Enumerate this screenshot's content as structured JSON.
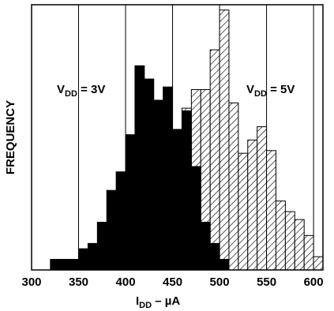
{
  "chart_data": {
    "type": "bar",
    "xlabel": {
      "main": "I",
      "sub": "DD",
      "rest": " – µA"
    },
    "ylabel": "FREQUENCY",
    "xlim": [
      300,
      610
    ],
    "ylim": [
      0,
      100
    ],
    "xticks": [
      "300",
      "350",
      "400",
      "450",
      "500",
      "550",
      "600"
    ],
    "grid": "vertical",
    "bin_width": 10,
    "series": [
      {
        "name": "VDD = 3V",
        "label": {
          "main": "V",
          "sub": "DD",
          "rest": " = 3V"
        },
        "fill": "solid",
        "color": "#000000",
        "bins": [
          {
            "x": 325,
            "v": 4
          },
          {
            "x": 335,
            "v": 4
          },
          {
            "x": 345,
            "v": 4
          },
          {
            "x": 355,
            "v": 8
          },
          {
            "x": 365,
            "v": 10
          },
          {
            "x": 375,
            "v": 18
          },
          {
            "x": 385,
            "v": 30
          },
          {
            "x": 395,
            "v": 37
          },
          {
            "x": 405,
            "v": 51
          },
          {
            "x": 415,
            "v": 77
          },
          {
            "x": 425,
            "v": 72
          },
          {
            "x": 435,
            "v": 64
          },
          {
            "x": 445,
            "v": 69
          },
          {
            "x": 455,
            "v": 53
          },
          {
            "x": 465,
            "v": 60
          },
          {
            "x": 475,
            "v": 39
          },
          {
            "x": 485,
            "v": 18
          },
          {
            "x": 495,
            "v": 10
          },
          {
            "x": 505,
            "v": 4
          }
        ]
      },
      {
        "name": "VDD = 5V",
        "label": {
          "main": "V",
          "sub": "DD",
          "rest": " = 5V"
        },
        "fill": "hatched",
        "color": "#000000",
        "bins": [
          {
            "x": 465,
            "v": 61
          },
          {
            "x": 475,
            "v": 68
          },
          {
            "x": 485,
            "v": 68
          },
          {
            "x": 495,
            "v": 83
          },
          {
            "x": 505,
            "v": 98
          },
          {
            "x": 515,
            "v": 63
          },
          {
            "x": 525,
            "v": 44
          },
          {
            "x": 535,
            "v": 49
          },
          {
            "x": 545,
            "v": 54
          },
          {
            "x": 555,
            "v": 45
          },
          {
            "x": 565,
            "v": 26
          },
          {
            "x": 575,
            "v": 22
          },
          {
            "x": 585,
            "v": 19
          },
          {
            "x": 595,
            "v": 13
          },
          {
            "x": 605,
            "v": 5
          }
        ]
      }
    ]
  }
}
